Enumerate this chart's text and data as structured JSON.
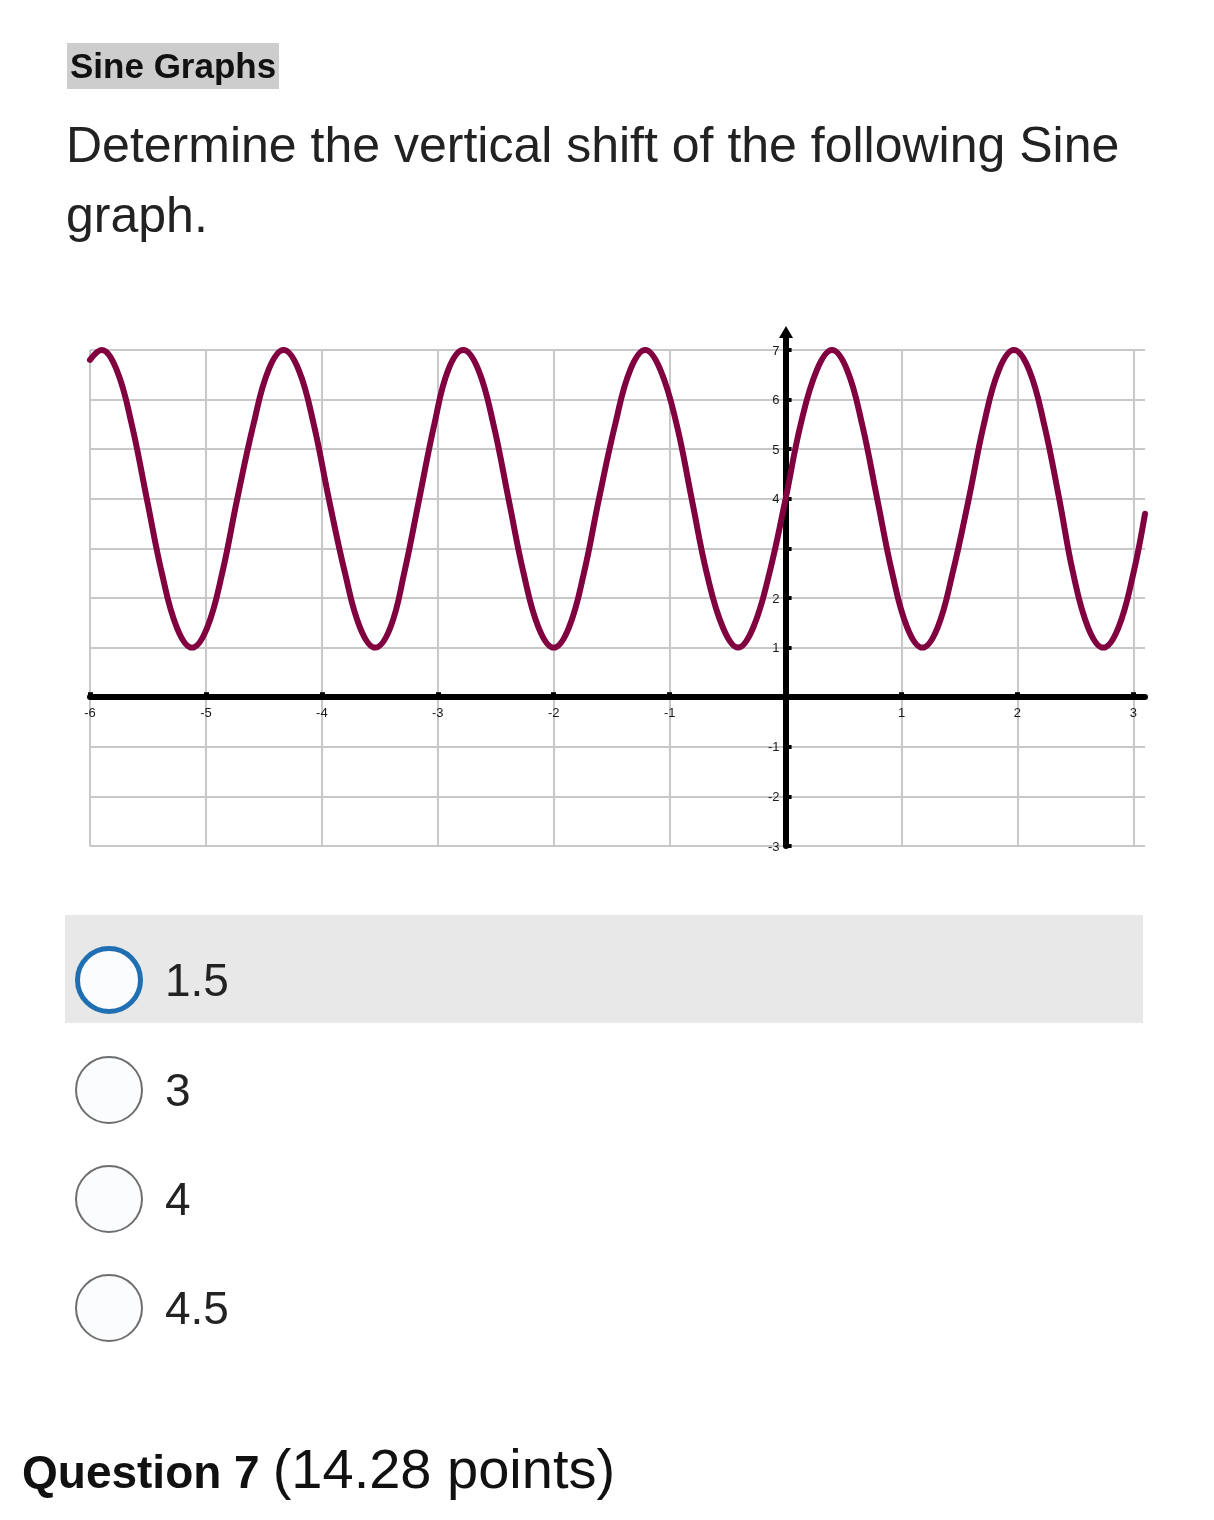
{
  "chart_data": {
    "type": "line",
    "title": "Sine Graphs",
    "subtitle": "Determine the vertical shift of the following Sine graph.",
    "annotations": [
      "1.5",
      "3",
      "4",
      "4.5",
      "Question 7",
      "(14.28 points)"
    ],
    "x": [
      -6.0,
      -5.9,
      -5.77,
      -5.64,
      -5.51,
      -5.38,
      -5.25,
      -5.12,
      -4.99,
      -4.86,
      -4.73,
      -4.59,
      -4.46,
      -4.33,
      -4.2,
      -4.07,
      -3.94,
      -3.8,
      -3.67,
      -3.54,
      -3.41,
      -3.29,
      -3.16,
      -3.03,
      -2.91,
      -2.78,
      -2.65,
      -2.52,
      -2.39,
      -2.26,
      -2.13,
      -2.0,
      -1.87,
      -1.74,
      -1.61,
      -1.47,
      -1.34,
      -1.21,
      -1.08,
      -0.94,
      -0.81,
      -0.68,
      -0.54,
      -0.41,
      -0.28,
      -0.14,
      0,
      0.13,
      0.27,
      0.4,
      0.53,
      0.66,
      0.79,
      0.92,
      1.05,
      1.18,
      1.31,
      1.44,
      1.58,
      1.71,
      1.84,
      1.97,
      2.1,
      2.23,
      2.36,
      2.48,
      2.61,
      2.74,
      2.87,
      3.0,
      3.1
    ],
    "series": [
      {
        "color": "#800040",
        "values": [
          6.8,
          7,
          6.6,
          5.5,
          4,
          2.5,
          1.4,
          1,
          1.4,
          2.5,
          4,
          5.5,
          6.6,
          7,
          6.6,
          5.5,
          4,
          2.5,
          1.4,
          1,
          1.4,
          2.5,
          4,
          5.5,
          6.6,
          7,
          6.6,
          5.5,
          4,
          2.5,
          1.4,
          1,
          1.4,
          2.5,
          4,
          5.5,
          6.6,
          7,
          6.6,
          5.5,
          4,
          2.5,
          1.4,
          1,
          1.4,
          2.5,
          4,
          5.5,
          6.6,
          7,
          6.6,
          5.5,
          4,
          2.5,
          1.4,
          1,
          1.4,
          2.5,
          4,
          5.5,
          6.6,
          7,
          6.6,
          5.5,
          4,
          2.5,
          1.4,
          1,
          1.4,
          2.5,
          3.7
        ]
      }
    ],
    "xlim": [
      -6,
      3.1
    ],
    "ylim": [
      -3,
      7
    ],
    "xticks": [
      -6,
      -5,
      -4,
      -3,
      -2,
      -1,
      {
        "value": 0,
        "label": null
      },
      1,
      2,
      3
    ],
    "yticks": [
      -3,
      -2,
      -1,
      {
        "value": 0,
        "label": null
      },
      1,
      2,
      {
        "value": 3,
        "label": null
      },
      4,
      5,
      6,
      7
    ],
    "grid": true,
    "marker": "none",
    "line_style": "solid"
  }
}
